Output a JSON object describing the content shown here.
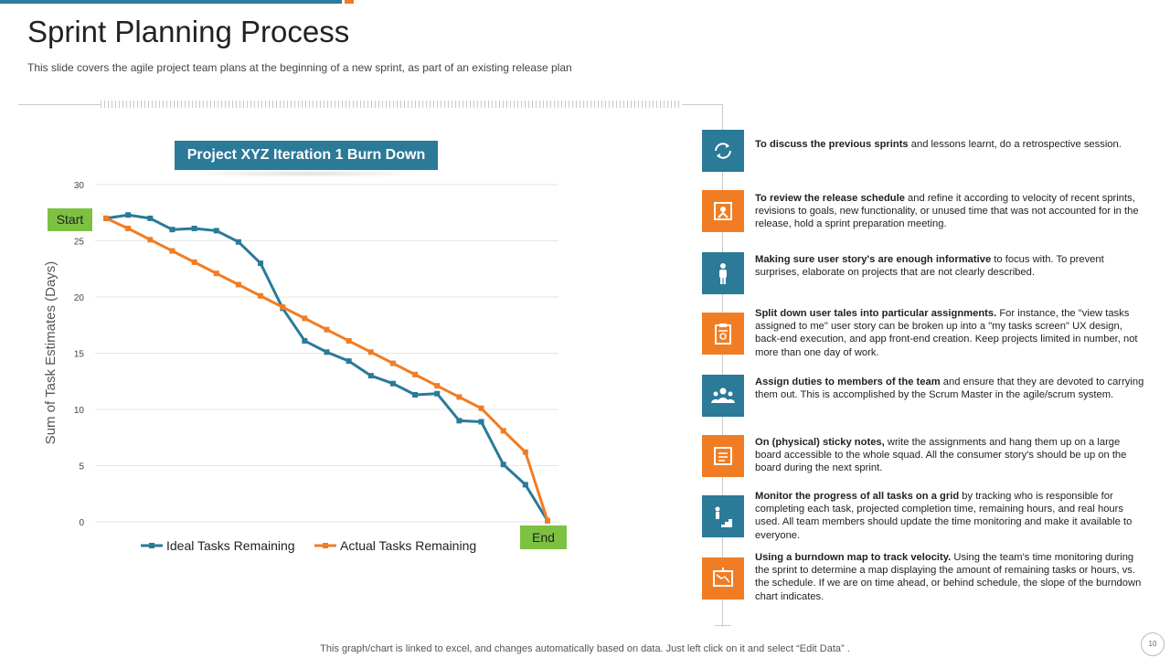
{
  "header": {
    "title": "Sprint Planning Process",
    "subtitle": "This slide covers the agile project team plans at the beginning of a new sprint, as part of an existing release plan"
  },
  "chart_title": "Project XYZ Iteration  1 Burn Down",
  "chart_data": {
    "type": "line",
    "title": "Project XYZ Iteration  1 Burn Down",
    "xlabel": "",
    "ylabel": "Sum of Task Estimates (Days)",
    "ylim": [
      0,
      30
    ],
    "yticks": [
      "0",
      "5",
      "10",
      "15",
      "20",
      "25",
      "30"
    ],
    "grid": true,
    "legend_placement": "bottom",
    "x": [
      1,
      2,
      3,
      4,
      5,
      6,
      7,
      8,
      9,
      10,
      11,
      12,
      13,
      14,
      15,
      16,
      17,
      18,
      19,
      20,
      21
    ],
    "series": [
      {
        "name": "Ideal Tasks Remaining",
        "color": "#2a7a98",
        "values": [
          27.0,
          27.3,
          27.0,
          26.0,
          26.1,
          25.9,
          24.9,
          23.0,
          19.0,
          16.1,
          15.1,
          14.3,
          13.0,
          12.3,
          11.3,
          11.4,
          9.0,
          8.9,
          5.1,
          3.3,
          0.1
        ]
      },
      {
        "name": "Actual Tasks Remaining",
        "color": "#f07d24",
        "values": [
          27.0,
          26.1,
          25.1,
          24.1,
          23.1,
          22.1,
          21.1,
          20.1,
          19.1,
          18.1,
          17.1,
          16.1,
          15.1,
          14.1,
          13.1,
          12.1,
          11.1,
          10.1,
          8.1,
          6.2,
          0.1
        ]
      }
    ],
    "annotations": {
      "start": "Start",
      "end": "End"
    },
    "colors": {
      "start_badge": "#7dc143",
      "end_badge": "#7dc143",
      "grid": "#e6e6e6"
    }
  },
  "steps": [
    {
      "icon": "refresh-cycle-icon",
      "color": "blue",
      "bold": "To discuss the previous  sprints",
      "text": " and lessons learnt, do a retrospective session."
    },
    {
      "icon": "release-schedule-icon",
      "color": "orange",
      "bold": "To review the release schedule",
      "text": " and refine it according to velocity of recent sprints, revisions to goals, new functionality, or unused time that was not accounted for in the release, hold a sprint preparation meeting."
    },
    {
      "icon": "person-icon",
      "color": "blue",
      "bold": "Making sure user story's are enough  informative",
      "text": " to focus with. To prevent surprises, elaborate on projects that are not clearly described."
    },
    {
      "icon": "clipboard-icon",
      "color": "orange",
      "bold": "Split down user tales into particular assignments.",
      "text": " For instance, the \"view tasks assigned to me\" user story can be broken up into a \"my tasks screen\" UX design, back-end execution, and app front-end creation. Keep projects limited in number, not more than one day of work."
    },
    {
      "icon": "team-icon",
      "color": "blue",
      "bold": "Assign duties to members of the team",
      "text": " and ensure that they are devoted to carrying them out. This is accomplished by the Scrum Master in the agile/scrum system."
    },
    {
      "icon": "sticky-notes-icon",
      "color": "orange",
      "bold": "On (physical) sticky notes,",
      "text": " write the assignments and hang them up on a large board accessible to the whole squad. All the consumer story's should be up on the board during the next sprint."
    },
    {
      "icon": "progress-stairs-icon",
      "color": "blue",
      "bold": "Monitor the progress of all tasks on a grid",
      "text": " by tracking who is responsible for completing each task, projected completion time, remaining hours, and real hours used. All team members should update the time monitoring and make it available to everyone."
    },
    {
      "icon": "burndown-map-icon",
      "color": "orange",
      "bold": "Using a burndown map to track velocity.",
      "text": " Using the team's time monitoring during the sprint to determine a map displaying the amount of remaining tasks or hours, vs. the schedule. If we are on time ahead, or behind schedule, the slope of the burndown chart indicates."
    }
  ],
  "footer": {
    "note": "This graph/chart is linked to excel,  and changes automatically based on data. Just left click on it and select “Edit Data” .",
    "page": "10"
  }
}
